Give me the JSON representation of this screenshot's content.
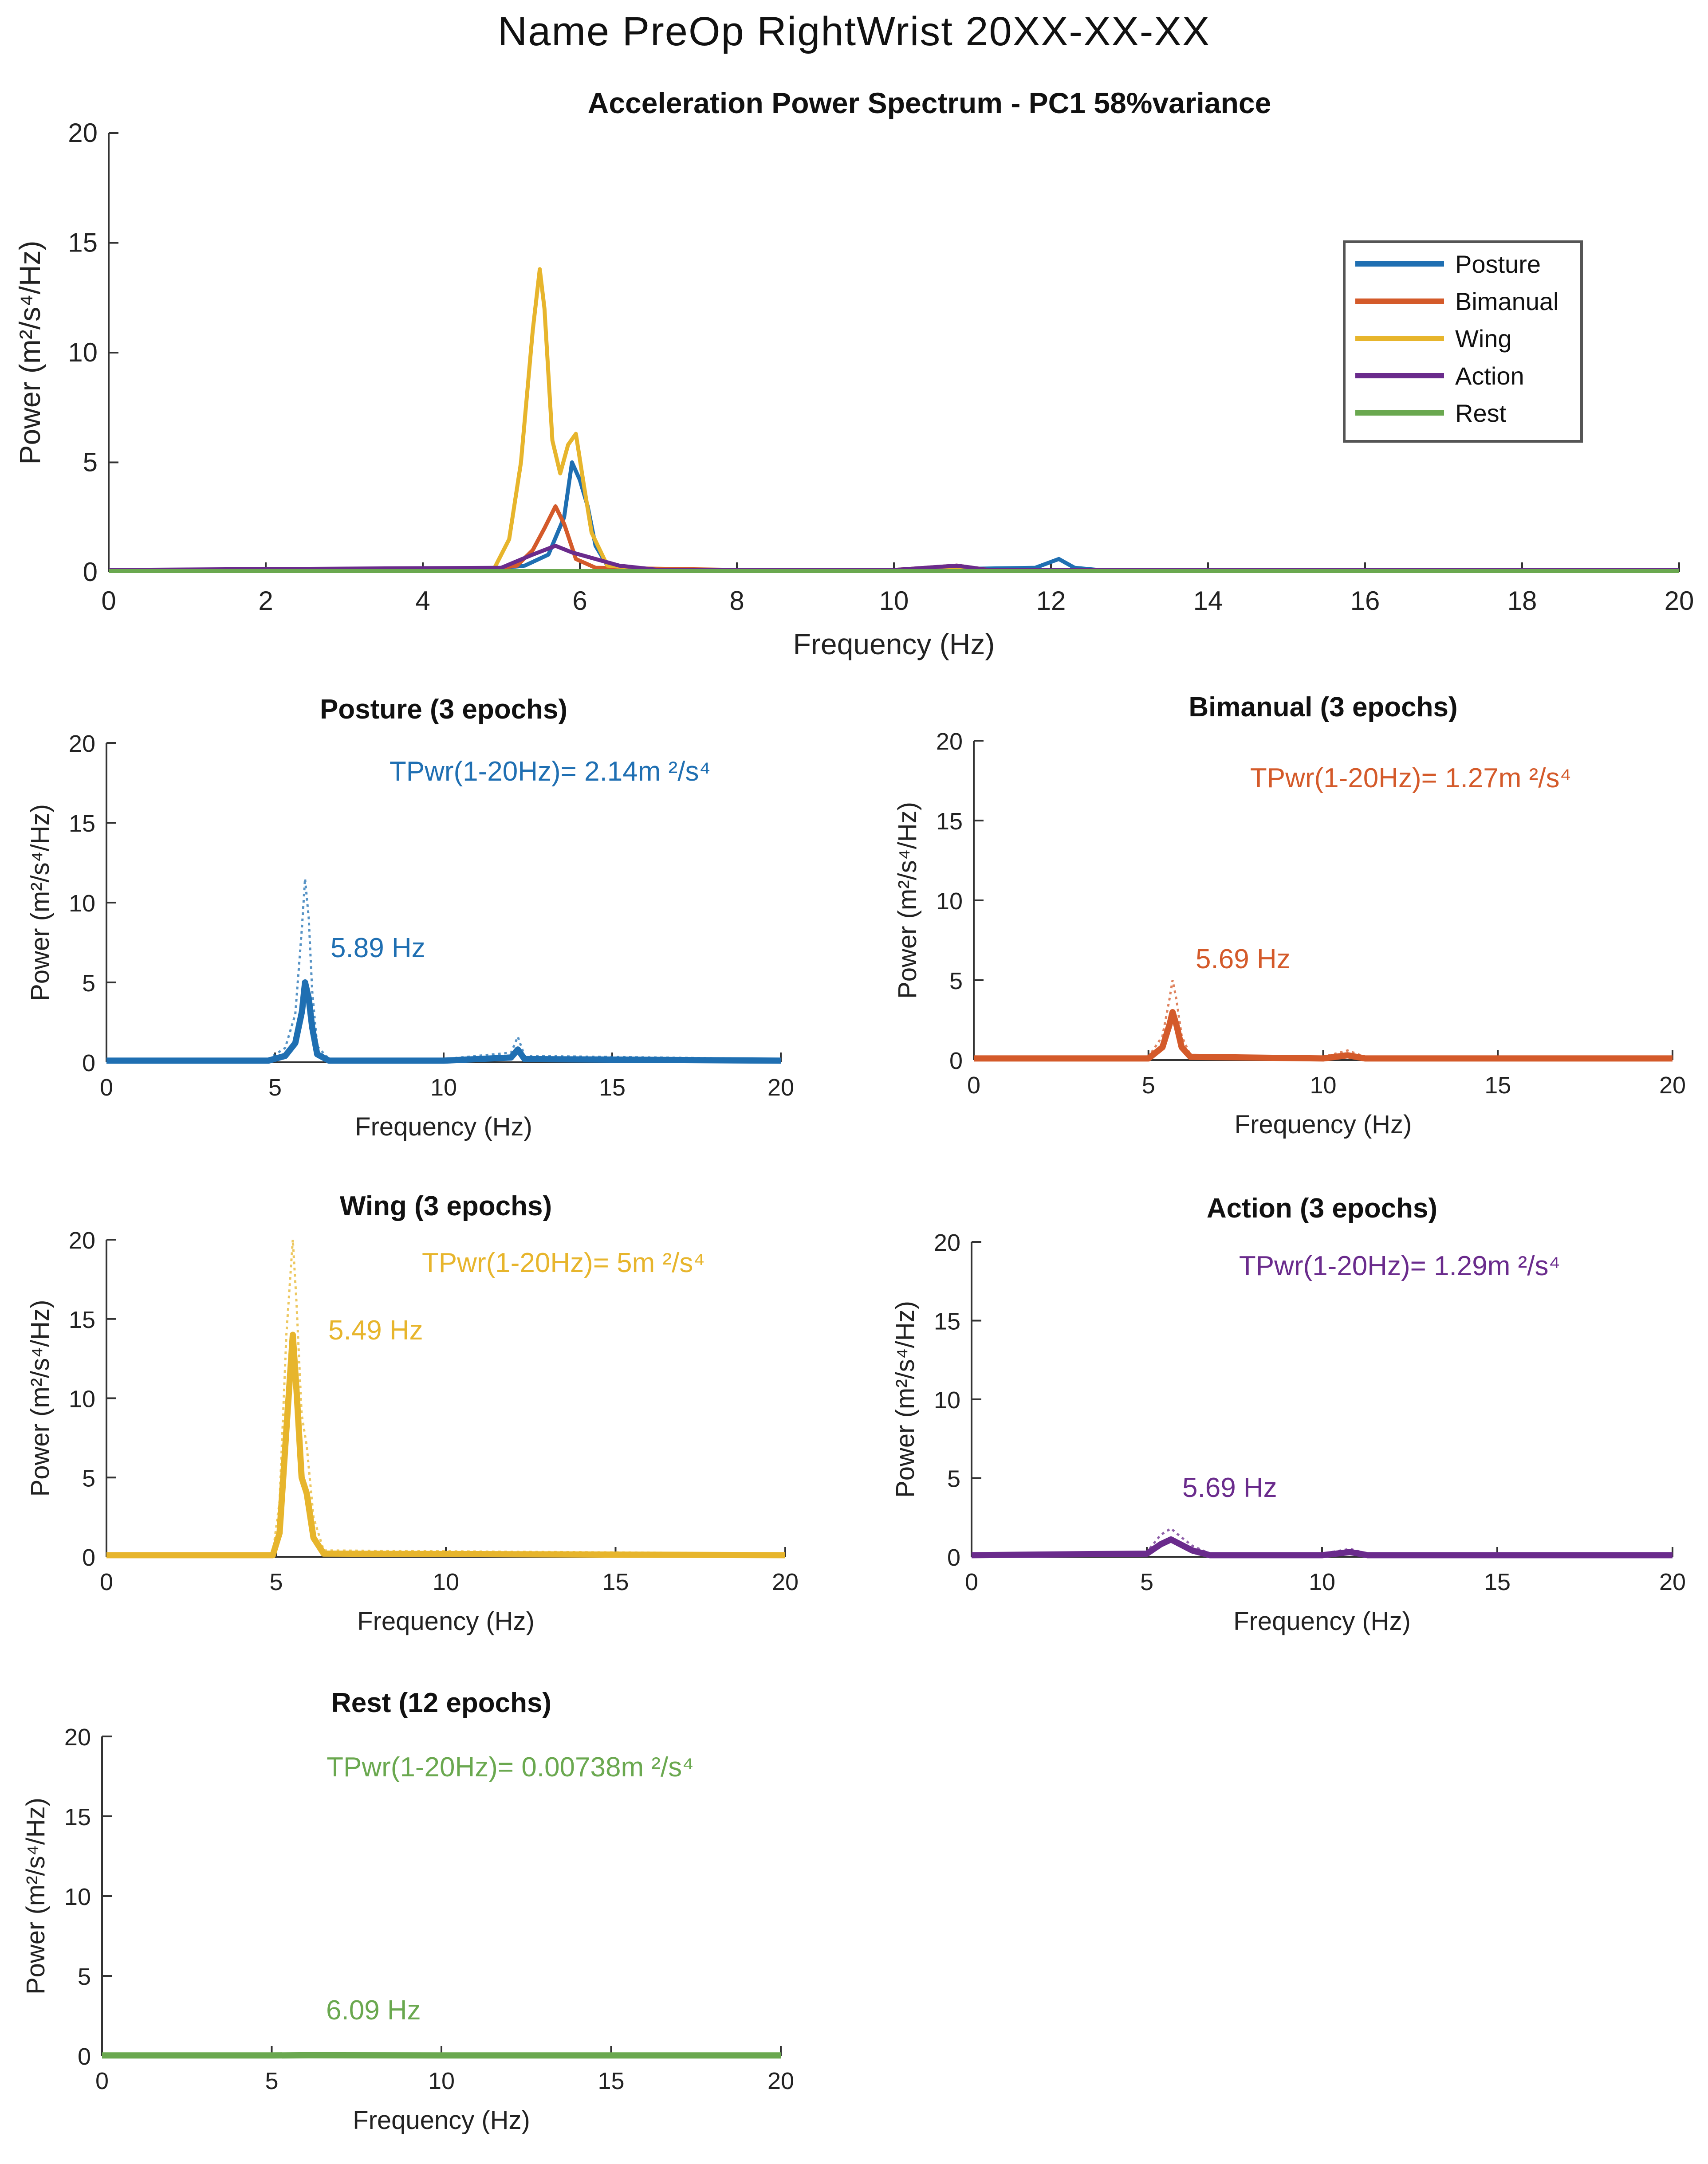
{
  "page_title": "Name  PreOp  RightWrist  20XX-XX-XX",
  "colors": {
    "posture": "#1f6fb2",
    "bimanual": "#d45a2a",
    "wing": "#e7b52c",
    "action": "#6a2b8c",
    "rest": "#6aa84f"
  },
  "chart_data": [
    {
      "id": "combined",
      "type": "line",
      "title": "Acceleration Power Spectrum - PC1 58%variance",
      "xlabel": "Frequency (Hz)",
      "ylabel": "Power (m²/s⁴/Hz)",
      "xlim": [
        0,
        20
      ],
      "ylim": [
        0,
        20
      ],
      "xticks": [
        0,
        2,
        4,
        6,
        8,
        10,
        12,
        14,
        16,
        18,
        20
      ],
      "yticks": [
        0,
        5,
        10,
        15,
        20
      ],
      "legend": [
        "Posture",
        "Bimanual",
        "Wing",
        "Action",
        "Rest"
      ],
      "legend_position": "top-right",
      "series": [
        {
          "name": "Posture",
          "color": "#1f6fb2",
          "x": [
            0,
            4.8,
            5.3,
            5.6,
            5.8,
            5.9,
            6.0,
            6.1,
            6.2,
            6.35,
            6.6,
            8,
            10,
            11.8,
            12.1,
            12.3,
            12.6,
            14,
            20
          ],
          "y": [
            0.1,
            0.1,
            0.3,
            0.8,
            2.5,
            5.0,
            4.2,
            3.0,
            1.2,
            0.3,
            0.1,
            0.1,
            0.1,
            0.2,
            0.6,
            0.2,
            0.1,
            0.1,
            0.1
          ]
        },
        {
          "name": "Bimanual",
          "color": "#d45a2a",
          "x": [
            0,
            4.8,
            5.2,
            5.4,
            5.55,
            5.69,
            5.8,
            5.95,
            6.2,
            8,
            10,
            10.8,
            11.2,
            14,
            20
          ],
          "y": [
            0.1,
            0.1,
            0.3,
            1.0,
            2.0,
            3.0,
            2.2,
            0.6,
            0.2,
            0.1,
            0.1,
            0.3,
            0.1,
            0.1,
            0.1
          ]
        },
        {
          "name": "Wing",
          "color": "#e7b52c",
          "x": [
            0,
            4.9,
            5.1,
            5.25,
            5.4,
            5.49,
            5.55,
            5.65,
            5.75,
            5.85,
            5.95,
            6.05,
            6.15,
            6.35,
            7,
            20
          ],
          "y": [
            0.1,
            0.1,
            1.5,
            5.0,
            11.0,
            13.8,
            12.0,
            6.0,
            4.5,
            5.8,
            6.3,
            4.0,
            1.8,
            0.3,
            0.1,
            0.1
          ]
        },
        {
          "name": "Action",
          "color": "#6a2b8c",
          "x": [
            0,
            5.0,
            5.4,
            5.69,
            5.9,
            6.2,
            6.5,
            7.0,
            10,
            10.8,
            11.2,
            20
          ],
          "y": [
            0.1,
            0.2,
            0.8,
            1.2,
            0.9,
            0.6,
            0.3,
            0.1,
            0.1,
            0.3,
            0.1,
            0.1
          ]
        },
        {
          "name": "Rest",
          "color": "#6aa84f",
          "x": [
            0,
            20
          ],
          "y": [
            0.05,
            0.05
          ]
        }
      ]
    },
    {
      "id": "posture",
      "type": "line",
      "title": "Posture (3 epochs)",
      "annotation": "TPwr(1-20Hz)= 2.14m ²/s⁴",
      "peak_label": "5.89 Hz",
      "peak_hz": 5.89,
      "color": "#1f6fb2",
      "xlabel": "Frequency (Hz)",
      "ylabel": "Power (m²/s⁴/Hz)",
      "xlim": [
        0,
        20
      ],
      "ylim": [
        0,
        20
      ],
      "xticks": [
        0,
        5,
        10,
        15,
        20
      ],
      "yticks": [
        0,
        5,
        10,
        15,
        20
      ],
      "x": [
        0,
        4.8,
        5.3,
        5.6,
        5.8,
        5.89,
        6.0,
        6.1,
        6.25,
        6.6,
        10,
        12.0,
        12.2,
        12.4,
        20
      ],
      "y": [
        0.1,
        0.1,
        0.4,
        1.2,
        3.2,
        5.0,
        4.0,
        2.2,
        0.5,
        0.1,
        0.1,
        0.3,
        0.8,
        0.2,
        0.1
      ],
      "upper": [
        0.2,
        0.2,
        0.9,
        3.0,
        8.5,
        11.5,
        9.0,
        4.5,
        1.0,
        0.2,
        0.2,
        0.6,
        1.6,
        0.4,
        0.2
      ]
    },
    {
      "id": "bimanual",
      "type": "line",
      "title": "Bimanual (3 epochs)",
      "annotation": "TPwr(1-20Hz)= 1.27m ²/s⁴",
      "peak_label": "5.69 Hz",
      "peak_hz": 5.69,
      "color": "#d45a2a",
      "xlabel": "Frequency (Hz)",
      "ylabel": "Power (m²/s⁴/Hz)",
      "xlim": [
        0,
        20
      ],
      "ylim": [
        0,
        20
      ],
      "xticks": [
        0,
        5,
        10,
        15,
        20
      ],
      "yticks": [
        0,
        5,
        10,
        15,
        20
      ],
      "x": [
        0,
        5.0,
        5.4,
        5.6,
        5.69,
        5.8,
        5.95,
        6.2,
        10,
        10.7,
        11.2,
        20
      ],
      "y": [
        0.1,
        0.1,
        0.8,
        2.2,
        3.0,
        2.2,
        0.8,
        0.2,
        0.1,
        0.3,
        0.1,
        0.1
      ],
      "upper": [
        0.2,
        0.2,
        1.5,
        3.8,
        5.0,
        3.8,
        1.5,
        0.3,
        0.2,
        0.6,
        0.2,
        0.2
      ]
    },
    {
      "id": "wing",
      "type": "line",
      "title": "Wing (3 epochs)",
      "annotation": "TPwr(1-20Hz)= 5m ²/s⁴",
      "peak_label": "5.49 Hz",
      "peak_hz": 5.49,
      "color": "#e7b52c",
      "xlabel": "Frequency (Hz)",
      "ylabel": "Power (m²/s⁴/Hz)",
      "xlim": [
        0,
        20
      ],
      "ylim": [
        0,
        20
      ],
      "xticks": [
        0,
        5,
        10,
        15,
        20
      ],
      "yticks": [
        0,
        5,
        10,
        15,
        20
      ],
      "x": [
        0,
        4.9,
        5.1,
        5.3,
        5.49,
        5.6,
        5.75,
        5.9,
        6.1,
        6.4,
        20
      ],
      "y": [
        0.1,
        0.1,
        1.5,
        8.0,
        14.0,
        10.5,
        5.0,
        4.0,
        1.2,
        0.2,
        0.1
      ],
      "upper": [
        0.2,
        0.2,
        3.5,
        14.0,
        20.0,
        16.0,
        9.0,
        7.0,
        2.5,
        0.4,
        0.2
      ]
    },
    {
      "id": "action",
      "type": "line",
      "title": "Action (3 epochs)",
      "annotation": "TPwr(1-20Hz)= 1.29m ²/s⁴",
      "peak_label": "5.69 Hz",
      "peak_hz": 5.69,
      "color": "#6a2b8c",
      "xlabel": "Frequency (Hz)",
      "ylabel": "Power (m²/s⁴/Hz)",
      "xlim": [
        0,
        20
      ],
      "ylim": [
        0,
        20
      ],
      "xticks": [
        0,
        5,
        10,
        15,
        20
      ],
      "yticks": [
        0,
        5,
        10,
        15,
        20
      ],
      "x": [
        0,
        5.0,
        5.4,
        5.69,
        5.95,
        6.3,
        6.8,
        10,
        10.8,
        11.3,
        20
      ],
      "y": [
        0.1,
        0.2,
        0.8,
        1.1,
        0.8,
        0.4,
        0.1,
        0.1,
        0.3,
        0.1,
        0.1
      ],
      "upper": [
        0.2,
        0.3,
        1.4,
        1.8,
        1.3,
        0.7,
        0.2,
        0.2,
        0.5,
        0.2,
        0.2
      ]
    },
    {
      "id": "rest",
      "type": "line",
      "title": "Rest (12 epochs)",
      "annotation": "TPwr(1-20Hz)= 0.00738m ²/s⁴",
      "peak_label": "6.09 Hz",
      "peak_hz": 6.09,
      "color": "#6aa84f",
      "xlabel": "Frequency (Hz)",
      "ylabel": "Power (m²/s⁴/Hz)",
      "xlim": [
        0,
        20
      ],
      "ylim": [
        0,
        20
      ],
      "xticks": [
        0,
        5,
        10,
        15,
        20
      ],
      "yticks": [
        0,
        5,
        10,
        15,
        20
      ],
      "x": [
        0,
        5,
        6.09,
        10,
        15,
        20
      ],
      "y": [
        0.02,
        0.02,
        0.03,
        0.02,
        0.02,
        0.02
      ],
      "upper": [
        0.05,
        0.05,
        0.06,
        0.05,
        0.05,
        0.05
      ]
    }
  ]
}
